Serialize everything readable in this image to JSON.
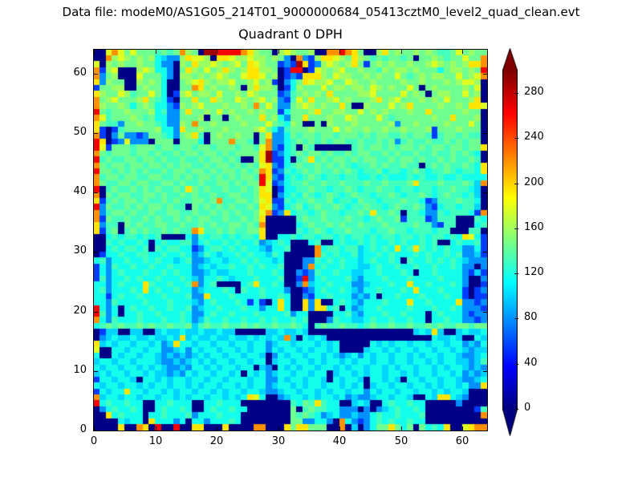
{
  "header": {
    "data_file_label": "Data file: modeM0/AS1G05_214T01_9000000684_05413cztM0_level2_quad_clean.evt"
  },
  "chart_data": {
    "type": "heatmap",
    "title": "Quadrant 0 DPH",
    "grid_size": 64,
    "x_ticks": [
      0,
      10,
      20,
      30,
      40,
      50,
      60
    ],
    "y_ticks": [
      0,
      10,
      20,
      30,
      40,
      50,
      60
    ],
    "vmin": 0,
    "vmax": 300,
    "colormap": "jet",
    "colorbar": {
      "ticks": [
        0,
        40,
        80,
        120,
        160,
        200,
        240,
        280
      ],
      "extend": "both"
    },
    "value_encoding": {
      ".": 2,
      "1": 55,
      "2": 80,
      "3": 100,
      "4": 118,
      "5": 132,
      "6": 145,
      "7": 158,
      "8": 178,
      "9": 195,
      "o": 220,
      "r": 265,
      "m": 290
    },
    "orientation": "rows_top_to_bottom[0] is y=63 (top); each string runs x=0..63 left to right",
    "rows_top_to_bottom": [
      "..8o8686665656o76.mmrrrro9766.787667..ooro96..796766767655686766",
      "..o7876767432279887.998778776762.o21799876976565 6656.6676566866o",
      "8.76766766422.7697787678698766121m91278767961676766766787676799o",
      "o178...787442.6976867976799776.1rr.187678667665767767666 4677676r",
      "o267...866642.77676787668998 67.121999768776676766865676 77668678o",
      "92766..76764..678976778667867 1.246987786687667666676676 66767 887.",
      "16677..67664..66o9676676.79776.147666867767768767668 6.676666768.",
      "976687566864.17867768667687666125676769666677866668676.67766867.",
      "o678666796541.6696697668767867215869667867666796786667676866679.",
      "o76676467644217678666766 76o68622678767669 6..766686796666 76676998",
      "r65667666745226966768676676766146667966776686767666766966666766.",
      "o856667656442266 67.66.6766696742669666766876668656666667 6696667.",
      "9655266766542276o667666676668654 76..6.76667666667266766 6 6766686.",
      "91.156666674429667666766667864256667666867667667667666716667666.",
      "o1.26221266542679 5.6766766.6922465665665666565665565665156656 55.",
      "r9.128222.666.6664.666o665.6o2245656565665565565625655655656566.",
      "r816665666566566566566656658o2145.65......56566565665656 65665669",
      "o65666566565565665665656 6669m124565665655656655 65655655655 6565 4.",
      "r565566566565565565665 65..69m114.569565665656655656656556565565.",
      "o65665665665656655656 65656589214565565656545565655655.5656556549",
      "r665656565565665665656 65656o912545656556565455645545654556545549",
      "o566566556655656566565656 65r9214545654554554454544454544544 54444.",
      "o6556656655665655655665656 6r812455655655655565565556955565556 53o",
      "r.56556565655659656556556569 8.144556554556545565545545545565543.",
      "o.65665566565565655655665569 9.245465456545655455654556545655453.",
      "915656656556565 56656o5566568911545565564554655455565541255565 54.",
      "r26556565665655. 6565656556598214564565565455655456556521455455 3.",
      "o2566565565566556556565655 68o12945545655455659556 5.554225455541o",
      "o1655655656556565665565565 69.....56556555655456556155512555...54.",
      "9255.6565566556556565566565o.....45655656556555655556552155...45.",
      "9156.56565565655o95565655669.....5456545565554556554555455...55.",
      "..454554545....425455454554 9..44545545545455454554554545545 49841",
      "..5454454.45445524544545445234 54...45..454454544545445 45..454451",
      "..4545545.5455441245545454432445....o4554553454549459545454 42241",
      ".14454455445445423543445454435 4.....o54544534454544454544545 2231",
      "452445445454434522344344545443 4...2254545443454454.5445454543222",
      "1425445445445444234344544545445...2o454454433454454454454454 22.2",
      "14245444544545442234334445444 54..21254454433445444 54.44544442131",
      "1524454544544454324454344454445..1r2454445324445444544445444 2..2",
      "44245444954454 45o245....4594454..2o344544422344454494454445 42..1",
      "4524445494544544234445 4.54454442..12454454324454445494445444 1.12",
      "44145445444544452294445444454454..21445444232 4.44544454445441.11",
      "442544445444544432454445 4141.494..929..454324445444944544449 2212",
      "r424.45445445445234454445442449 4..929945.423445444454445445 42221",
      "r524.445445444542245445444544445244....445324445445444.454442122",
      "o4254445444544542354454454454544545...2544334544544544.445442212",
      "4565655656556556356556556565565565 4.565565545655655655656556 6566",
      ".133..33..3433433433433.....3343343.................34393..343343346",
      ".2343343343343 93433433433434343o3.4343.................43343..433432234",
      "93434434434239443443443443442344344434 34.....43434434434434 42324",
      "8..4434434422342434434434344243443434434....344343443443 44343233",
      "4..434434432323234344344344 3.2434434434323424344344343443 4432234",
      "344344344432232343434434434 4.344344343443434434434434434344 3323",
      "434434434343223244343443 44.32.43434434434344344343443443 43443232",
      "34344344343323243443443 4.4342344344344.34434344344343443 44342323",
      "1443443.443434434434434443442243443443.43443.44343.4434434432234",
      "4344344343443443434434434344234434344 3443434.34434434434 34434229",
      "1434494434434344344343443443223443443434434424344344344343443...",
      "o344344344344343443443434984..234434344342322344 3443..4399432...",
      "r4544544..445444..445444........54659544..343..4544544.....2....",
      ".2454454..454454..4544544.......6.565544222.2.23454454........1",
      "..945444.445444524445444........6565423422322454454445.........o",
      "....4344.944424.44244454........6622442.o4212454544544..........",
      "....9..o9.r..r..99...9....oo...9699666..o.3.24669646.64549..89oo"
    ]
  }
}
